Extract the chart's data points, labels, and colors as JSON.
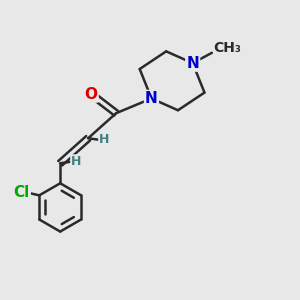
{
  "bg_color": "#e8e8e8",
  "bond_color": "#2a2a2a",
  "bond_width": 1.8,
  "atom_colors": {
    "O": "#dd0000",
    "N": "#0000cc",
    "Cl": "#00aa00",
    "H": "#408080",
    "C": "#2a2a2a"
  },
  "font_size_atom": 11,
  "font_size_H": 9,
  "font_size_methyl": 10
}
